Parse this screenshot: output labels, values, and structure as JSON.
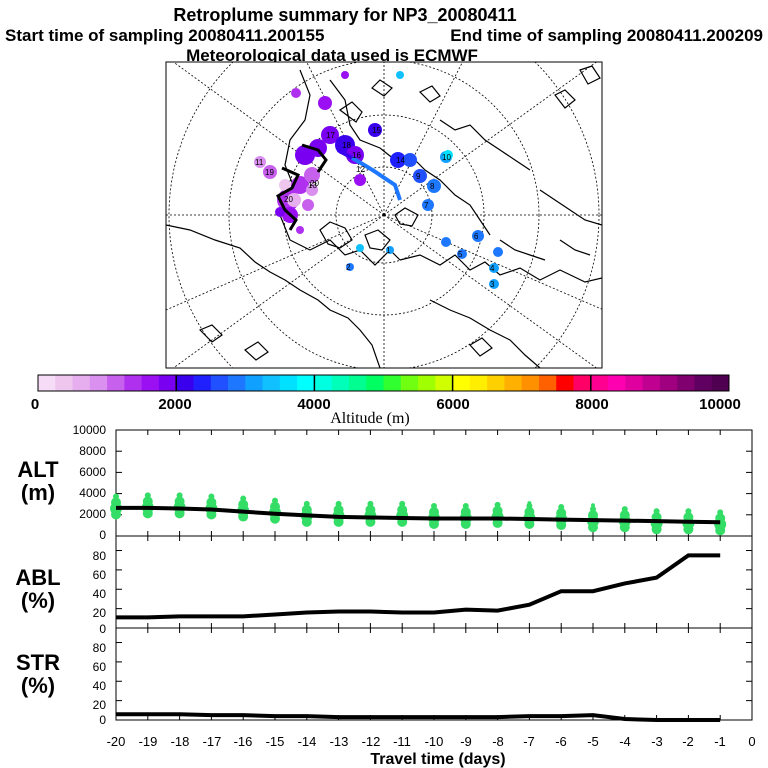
{
  "header": {
    "title": "Retroplume summary for NP3_20080411",
    "start": "Start time of sampling 20080411.200155",
    "end": "End time of sampling 20080411.200209",
    "met": "Meteorological data used is ECMWF"
  },
  "colorbar": {
    "ticks": [
      "0",
      "2000",
      "4000",
      "6000",
      "8000",
      "10000"
    ],
    "label": "Altitude (m)",
    "colors": [
      "#f6dcf6",
      "#eec6ee",
      "#e6aeee",
      "#d990ee",
      "#c860ee",
      "#b030f0",
      "#9a10f2",
      "#7a00f2",
      "#3a00ee",
      "#2020ff",
      "#2050ff",
      "#1e78ff",
      "#10a0ff",
      "#10c0ff",
      "#00e0ff",
      "#00ffff",
      "#00ffe0",
      "#00ffb8",
      "#00ff90",
      "#00ff60",
      "#30ff30",
      "#70ff10",
      "#a0ff00",
      "#d0ff00",
      "#ffff00",
      "#ffee00",
      "#ffd000",
      "#ffb000",
      "#ff9000",
      "#ff6000",
      "#ff0000",
      "#ff0066",
      "#ff0090",
      "#ff00b0",
      "#e000a0",
      "#c00090",
      "#a00080",
      "#800070",
      "#600060",
      "#500050"
    ]
  },
  "map_labels": [
    "11",
    "19",
    "20",
    "13",
    "17",
    "20",
    "18",
    "16",
    "15",
    "14",
    "12",
    "10",
    "9",
    "8",
    "7",
    "6",
    "5",
    "4",
    "3",
    "2",
    "1"
  ],
  "panels": {
    "alt_label": [
      "ALT",
      "(m)"
    ],
    "abl_label": [
      "ABL",
      "(%)"
    ],
    "str_label": [
      "STR",
      "(%)"
    ],
    "alt_yticks": [
      "10000",
      "8000",
      "6000",
      "4000",
      "2000",
      "0"
    ],
    "pct_yticks": [
      "80",
      "60",
      "40",
      "20",
      "0"
    ]
  },
  "xaxis": {
    "ticks": [
      "-20",
      "-19",
      "-18",
      "-17",
      "-16",
      "-15",
      "-14",
      "-13",
      "-12",
      "-11",
      "-10",
      "-9",
      "-8",
      "-7",
      "-6",
      "-5",
      "-4",
      "-3",
      "-2",
      "-1",
      "0"
    ],
    "label": "Travel time (days)"
  },
  "chart_data": [
    {
      "type": "line",
      "title": "ALT (m)",
      "x": [
        -20,
        -19,
        -18,
        -17,
        -16,
        -15,
        -14,
        -13,
        -12,
        -11,
        -10,
        -9,
        -8,
        -7,
        -6,
        -5,
        -4,
        -3,
        -2,
        -1
      ],
      "series": [
        {
          "name": "mean altitude",
          "values": [
            2650,
            2650,
            2600,
            2500,
            2300,
            2100,
            1950,
            1800,
            1750,
            1700,
            1650,
            1650,
            1650,
            1600,
            1550,
            1500,
            1450,
            1400,
            1350,
            1300
          ]
        },
        {
          "name": "cluster altitude",
          "values": [
            2600,
            2700,
            2700,
            2600,
            2400,
            2200,
            1900,
            1900,
            1900,
            1900,
            1700,
            1700,
            1800,
            1700,
            1600,
            1400,
            1400,
            1200,
            1200,
            1100
          ]
        }
      ],
      "xlabel": "Travel time (days)",
      "ylabel": "ALT (m)",
      "xlim": [
        -20,
        0
      ],
      "ylim": [
        0,
        10000
      ]
    },
    {
      "type": "line",
      "title": "ABL (%)",
      "x": [
        -20,
        -19,
        -18,
        -17,
        -16,
        -15,
        -14,
        -13,
        -12,
        -11,
        -10,
        -9,
        -8,
        -7,
        -6,
        -5,
        -4,
        -3,
        -2,
        -1
      ],
      "series": [
        {
          "name": "ABL fraction",
          "values": [
            11,
            11,
            12,
            12,
            12,
            14,
            16,
            17,
            17,
            16,
            16,
            19,
            18,
            24,
            38,
            38,
            46,
            52,
            75,
            75
          ]
        }
      ],
      "xlabel": "Travel time (days)",
      "ylabel": "ABL (%)",
      "xlim": [
        -20,
        0
      ],
      "ylim": [
        0,
        95
      ]
    },
    {
      "type": "line",
      "title": "STR (%)",
      "x": [
        -20,
        -19,
        -18,
        -17,
        -16,
        -15,
        -14,
        -13,
        -12,
        -11,
        -10,
        -9,
        -8,
        -7,
        -6,
        -5,
        -4,
        -3,
        -2,
        -1
      ],
      "series": [
        {
          "name": "STR fraction",
          "values": [
            6,
            6,
            6,
            5,
            5,
            4,
            4,
            3,
            3,
            3,
            3,
            3,
            3,
            4,
            4,
            5,
            1,
            0,
            0,
            0
          ]
        }
      ],
      "xlabel": "Travel time (days)",
      "ylabel": "STR (%)",
      "xlim": [
        -20,
        0
      ],
      "ylim": [
        0,
        95
      ]
    }
  ]
}
